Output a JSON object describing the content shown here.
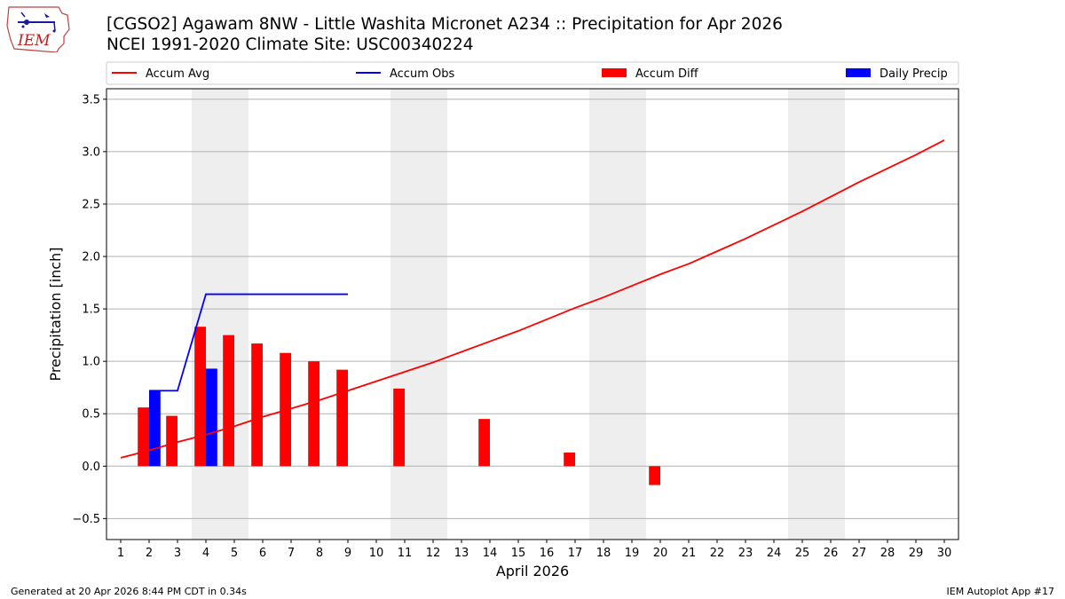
{
  "header": {
    "title_line1": "[CGSO2] Agawam 8NW - Little Washita Micronet A234 :: Precipitation for Apr 2026",
    "title_line2": "NCEI 1991-2020 Climate Site: USC00340224",
    "logo_text": "IEM"
  },
  "footer": {
    "generated": "Generated at 20 Apr 2026 8:44 PM CDT in 0.34s",
    "app": "IEM Autoplot App #17"
  },
  "colors": {
    "accum_avg": "#ff0000",
    "accum_obs": "#0000ff",
    "accum_diff": "#ff0000",
    "daily_precip": "#0000ff",
    "weekend_shade": "#eeeeee",
    "grid": "#b0b0b0"
  },
  "chart_data": {
    "type": "bar",
    "xlabel": "April 2026",
    "ylabel": "Precipitation [inch]",
    "xlim": [
      0.5,
      30.5
    ],
    "ylim": [
      -0.7,
      3.6
    ],
    "yticks": [
      -0.5,
      0.0,
      0.5,
      1.0,
      1.5,
      2.0,
      2.5,
      3.0,
      3.5
    ],
    "ytick_labels": [
      "−0.5",
      "0.0",
      "0.5",
      "1.0",
      "1.5",
      "2.0",
      "2.5",
      "3.0",
      "3.5"
    ],
    "x": [
      1,
      2,
      3,
      4,
      5,
      6,
      7,
      8,
      9,
      10,
      11,
      12,
      13,
      14,
      15,
      16,
      17,
      18,
      19,
      20,
      21,
      22,
      23,
      24,
      25,
      26,
      27,
      28,
      29,
      30
    ],
    "xtick_labels": [
      "1",
      "2",
      "3",
      "4",
      "5",
      "6",
      "7",
      "8",
      "9",
      "10",
      "11",
      "12",
      "13",
      "14",
      "15",
      "16",
      "17",
      "18",
      "19",
      "20",
      "21",
      "22",
      "23",
      "24",
      "25",
      "26",
      "27",
      "28",
      "29",
      "30"
    ],
    "grid": "horizontal",
    "legend_position": "top",
    "weekend_spans": [
      [
        3.5,
        5.5
      ],
      [
        10.5,
        12.5
      ],
      [
        17.5,
        19.5
      ],
      [
        24.5,
        26.5
      ]
    ],
    "series": [
      {
        "name": "Accum Avg",
        "type": "line",
        "x": [
          1,
          2,
          3,
          4,
          5,
          6,
          7,
          8,
          9,
          10,
          11,
          12,
          13,
          14,
          15,
          16,
          17,
          18,
          19,
          20,
          21,
          22,
          23,
          24,
          25,
          26,
          27,
          28,
          29,
          30
        ],
        "values": [
          0.08,
          0.15,
          0.23,
          0.3,
          0.38,
          0.47,
          0.55,
          0.63,
          0.72,
          0.81,
          0.9,
          0.99,
          1.09,
          1.19,
          1.29,
          1.4,
          1.51,
          1.61,
          1.72,
          1.83,
          1.93,
          2.05,
          2.17,
          2.3,
          2.43,
          2.57,
          2.71,
          2.84,
          2.97,
          3.11
        ]
      },
      {
        "name": "Accum Obs",
        "type": "line",
        "x": [
          2,
          3,
          4,
          5,
          6,
          7,
          8,
          9
        ],
        "values": [
          0.72,
          0.72,
          1.64,
          1.64,
          1.64,
          1.64,
          1.64,
          1.64
        ]
      },
      {
        "name": "Accum Diff",
        "type": "bar",
        "x": [
          2,
          3,
          4,
          5,
          6,
          7,
          8,
          9,
          11,
          14,
          17,
          20
        ],
        "values": [
          0.56,
          0.48,
          1.33,
          1.25,
          1.17,
          1.08,
          1.0,
          0.92,
          0.74,
          0.45,
          0.13,
          -0.18
        ]
      },
      {
        "name": "Daily Precip",
        "type": "bar",
        "x": [
          2,
          4
        ],
        "values": [
          0.72,
          0.93
        ]
      }
    ]
  }
}
